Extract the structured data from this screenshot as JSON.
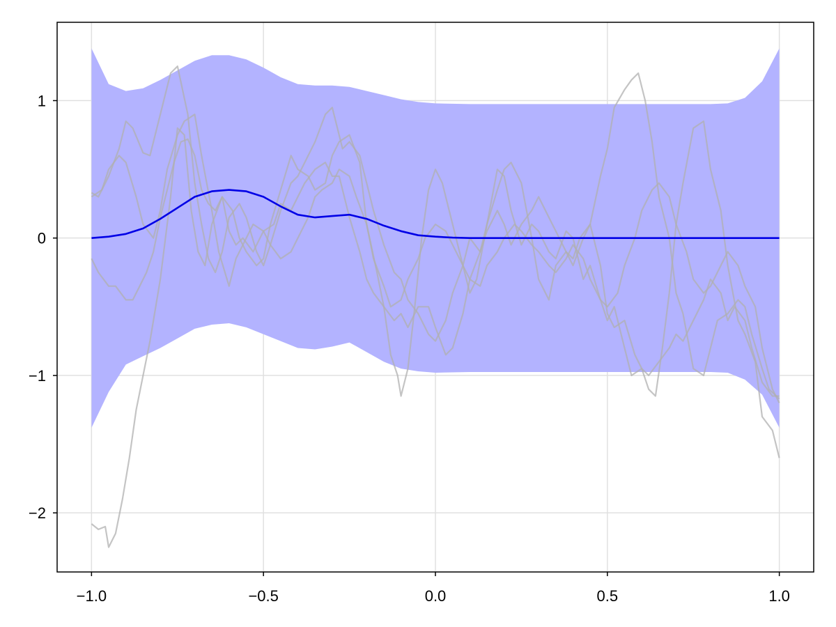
{
  "chart_data": {
    "type": "line",
    "title": "",
    "xlabel": "",
    "ylabel": "",
    "xlim": [
      -1.1,
      1.1
    ],
    "ylim": [
      -2.43,
      1.57
    ],
    "grid": true,
    "legend": "none",
    "x_ticks": [
      -1.0,
      -0.5,
      0.0,
      0.5,
      1.0
    ],
    "x_tick_labels": [
      "−1.0",
      "−0.5",
      "0.0",
      "0.5",
      "1.0"
    ],
    "y_ticks": [
      -2,
      -1,
      0,
      1
    ],
    "y_tick_labels": [
      "−2",
      "−1",
      "0",
      "1"
    ],
    "band": {
      "color": "#b3b3ff",
      "x": [
        -1.0,
        -0.95,
        -0.9,
        -0.85,
        -0.8,
        -0.75,
        -0.7,
        -0.65,
        -0.6,
        -0.55,
        -0.5,
        -0.45,
        -0.4,
        -0.35,
        -0.3,
        -0.25,
        -0.2,
        -0.15,
        -0.1,
        -0.05,
        0.0,
        0.1,
        0.2,
        0.3,
        0.4,
        0.5,
        0.6,
        0.7,
        0.8,
        0.85,
        0.9,
        0.95,
        1.0
      ],
      "upper": [
        1.38,
        1.12,
        1.07,
        1.09,
        1.15,
        1.22,
        1.29,
        1.33,
        1.33,
        1.3,
        1.24,
        1.17,
        1.12,
        1.11,
        1.11,
        1.1,
        1.07,
        1.04,
        1.01,
        0.99,
        0.98,
        0.975,
        0.975,
        0.975,
        0.975,
        0.975,
        0.975,
        0.975,
        0.975,
        0.98,
        1.02,
        1.14,
        1.38
      ],
      "lower": [
        -1.38,
        -1.12,
        -0.92,
        -0.86,
        -0.8,
        -0.73,
        -0.66,
        -0.63,
        -0.62,
        -0.65,
        -0.7,
        -0.75,
        -0.8,
        -0.81,
        -0.79,
        -0.76,
        -0.83,
        -0.9,
        -0.95,
        -0.97,
        -0.98,
        -0.975,
        -0.975,
        -0.975,
        -0.975,
        -0.975,
        -0.975,
        -0.975,
        -0.975,
        -0.98,
        -1.03,
        -1.14,
        -1.38
      ]
    },
    "mean": {
      "color": "#0000e6",
      "x": [
        -1.0,
        -0.95,
        -0.9,
        -0.85,
        -0.8,
        -0.75,
        -0.7,
        -0.65,
        -0.6,
        -0.55,
        -0.5,
        -0.45,
        -0.4,
        -0.35,
        -0.3,
        -0.25,
        -0.2,
        -0.15,
        -0.1,
        -0.05,
        0.0,
        0.05,
        0.1,
        0.2,
        0.3,
        0.4,
        0.5,
        0.6,
        0.7,
        0.8,
        0.9,
        1.0
      ],
      "y": [
        0.0,
        0.01,
        0.03,
        0.07,
        0.14,
        0.22,
        0.3,
        0.34,
        0.35,
        0.34,
        0.3,
        0.23,
        0.17,
        0.15,
        0.16,
        0.17,
        0.14,
        0.09,
        0.05,
        0.02,
        0.01,
        0.003,
        0.0,
        0.0,
        0.0,
        0.0,
        0.0,
        0.0,
        0.0,
        0.0,
        0.0,
        0.0
      ]
    },
    "samples": [
      {
        "color": "#b0b0b0",
        "x": [
          -1.0,
          -0.98,
          -0.96,
          -0.95,
          -0.93,
          -0.91,
          -0.89,
          -0.87,
          -0.85,
          -0.83,
          -0.8,
          -0.77,
          -0.75,
          -0.73,
          -0.71,
          -0.69,
          -0.67,
          -0.65,
          -0.62,
          -0.59,
          -0.57,
          -0.55,
          -0.52,
          -0.5,
          -0.48,
          -0.45,
          -0.42,
          -0.4,
          -0.37,
          -0.35,
          -0.32,
          -0.3,
          -0.28,
          -0.25,
          -0.22,
          -0.2,
          -0.17,
          -0.15,
          -0.13,
          -0.11,
          -0.1,
          -0.08,
          -0.06,
          -0.04,
          -0.02,
          0.0,
          0.02,
          0.05,
          0.08,
          0.1,
          0.12,
          0.15,
          0.18,
          0.2,
          0.22,
          0.25,
          0.28,
          0.3,
          0.33,
          0.35,
          0.38,
          0.4,
          0.43,
          0.45,
          0.48,
          0.5,
          0.52,
          0.55,
          0.57,
          0.6,
          0.62,
          0.64,
          0.66,
          0.68,
          0.7,
          0.72,
          0.75,
          0.78,
          0.8,
          0.83,
          0.85,
          0.88,
          0.9,
          0.93,
          0.95,
          0.98,
          1.0
        ],
        "y": [
          -2.08,
          -2.12,
          -2.1,
          -2.25,
          -2.15,
          -1.9,
          -1.6,
          -1.25,
          -1.0,
          -0.75,
          -0.3,
          0.3,
          0.8,
          0.75,
          0.2,
          -0.1,
          -0.2,
          0.1,
          0.3,
          0.2,
          0.0,
          -0.1,
          -0.2,
          -0.15,
          0.1,
          0.35,
          0.6,
          0.5,
          0.45,
          0.35,
          0.4,
          0.6,
          0.7,
          0.75,
          0.55,
          0.1,
          -0.25,
          -0.5,
          -0.85,
          -1.0,
          -1.15,
          -0.95,
          -0.5,
          0.0,
          0.35,
          0.5,
          0.4,
          0.1,
          -0.2,
          -0.4,
          -0.3,
          0.1,
          0.5,
          0.45,
          0.2,
          -0.05,
          0.1,
          0.05,
          -0.1,
          -0.15,
          0.05,
          0.0,
          -0.3,
          -0.2,
          -0.45,
          -0.6,
          -0.5,
          -0.8,
          -1.0,
          -0.95,
          -1.1,
          -1.15,
          -0.8,
          -0.4,
          0.1,
          0.4,
          0.8,
          0.85,
          0.5,
          0.2,
          -0.2,
          -0.6,
          -0.7,
          -0.9,
          -1.3,
          -1.4,
          -1.6
        ]
      },
      {
        "color": "#b0b0b0",
        "x": [
          -1.0,
          -0.98,
          -0.95,
          -0.92,
          -0.9,
          -0.88,
          -0.85,
          -0.83,
          -0.8,
          -0.77,
          -0.75,
          -0.72,
          -0.7,
          -0.68,
          -0.66,
          -0.64,
          -0.62,
          -0.6,
          -0.57,
          -0.55,
          -0.52,
          -0.5,
          -0.48,
          -0.45,
          -0.42,
          -0.4,
          -0.38,
          -0.35,
          -0.32,
          -0.3,
          -0.27,
          -0.25,
          -0.22,
          -0.2,
          -0.18,
          -0.15,
          -0.12,
          -0.1,
          -0.08,
          -0.05,
          -0.02,
          0.0,
          0.03,
          0.05,
          0.08,
          0.1,
          0.13,
          0.15,
          0.18,
          0.2,
          0.22,
          0.25,
          0.28,
          0.3,
          0.33,
          0.35,
          0.38,
          0.4,
          0.43,
          0.45,
          0.48,
          0.5,
          0.52,
          0.55,
          0.58,
          0.6,
          0.62,
          0.65,
          0.68,
          0.7,
          0.72,
          0.75,
          0.78,
          0.8,
          0.83,
          0.85,
          0.87,
          0.9,
          0.92,
          0.95,
          0.98,
          1.0
        ],
        "y": [
          0.33,
          0.3,
          0.45,
          0.65,
          0.85,
          0.8,
          0.62,
          0.6,
          0.9,
          1.2,
          1.25,
          0.9,
          0.4,
          0.1,
          -0.15,
          -0.25,
          -0.1,
          0.15,
          0.25,
          0.15,
          -0.1,
          -0.2,
          -0.05,
          0.2,
          0.4,
          0.45,
          0.55,
          0.7,
          0.9,
          0.95,
          0.65,
          0.7,
          0.6,
          0.4,
          0.2,
          -0.05,
          -0.25,
          -0.3,
          -0.45,
          -0.55,
          -0.7,
          -0.75,
          -0.6,
          -0.4,
          -0.2,
          0.0,
          -0.1,
          0.05,
          0.2,
          0.1,
          -0.05,
          0.1,
          0.2,
          0.3,
          0.15,
          0.05,
          -0.1,
          -0.2,
          0.0,
          0.1,
          -0.2,
          -0.55,
          -0.65,
          -0.6,
          -0.85,
          -0.95,
          -1.0,
          -0.9,
          -0.8,
          -0.7,
          -0.75,
          -0.6,
          -0.45,
          -0.3,
          -0.4,
          -0.6,
          -0.5,
          -0.6,
          -0.8,
          -1.05,
          -1.15,
          -1.15
        ]
      },
      {
        "color": "#b0b0b0",
        "x": [
          -1.0,
          -0.98,
          -0.95,
          -0.93,
          -0.9,
          -0.88,
          -0.86,
          -0.84,
          -0.82,
          -0.8,
          -0.78,
          -0.76,
          -0.74,
          -0.72,
          -0.7,
          -0.68,
          -0.66,
          -0.64,
          -0.62,
          -0.6,
          -0.58,
          -0.56,
          -0.53,
          -0.5,
          -0.47,
          -0.45,
          -0.42,
          -0.4,
          -0.38,
          -0.35,
          -0.32,
          -0.3,
          -0.28,
          -0.25,
          -0.22,
          -0.2,
          -0.18,
          -0.15,
          -0.12,
          -0.1,
          -0.08,
          -0.05,
          -0.02,
          0.0,
          0.03,
          0.05,
          0.08,
          0.1,
          0.13,
          0.15,
          0.18,
          0.2,
          0.22,
          0.25,
          0.28,
          0.3,
          0.33,
          0.35,
          0.38,
          0.4,
          0.42,
          0.45,
          0.48,
          0.5,
          0.52,
          0.55,
          0.57,
          0.59,
          0.61,
          0.63,
          0.65,
          0.68,
          0.7,
          0.72,
          0.75,
          0.78,
          0.8,
          0.82,
          0.85,
          0.88,
          0.9,
          0.92,
          0.95,
          0.97,
          1.0
        ],
        "y": [
          -0.15,
          -0.25,
          -0.35,
          -0.35,
          -0.45,
          -0.45,
          -0.35,
          -0.25,
          -0.1,
          0.15,
          0.35,
          0.55,
          0.7,
          0.72,
          0.6,
          0.35,
          0.25,
          0.2,
          0.3,
          0.05,
          -0.05,
          0.0,
          -0.1,
          0.05,
          0.1,
          0.25,
          0.2,
          0.3,
          0.4,
          0.5,
          0.55,
          0.45,
          0.45,
          0.15,
          -0.1,
          -0.3,
          -0.4,
          -0.5,
          -0.6,
          -0.55,
          -0.65,
          -0.5,
          -0.5,
          -0.65,
          -0.85,
          -0.8,
          -0.55,
          -0.3,
          -0.1,
          0.1,
          0.35,
          0.5,
          0.55,
          0.4,
          0.0,
          -0.3,
          -0.45,
          -0.2,
          -0.1,
          -0.15,
          0.0,
          0.1,
          0.45,
          0.65,
          0.95,
          1.08,
          1.15,
          1.2,
          1.0,
          0.7,
          0.3,
          0.0,
          -0.4,
          -0.55,
          -0.95,
          -1.0,
          -0.8,
          -0.6,
          -0.55,
          -0.45,
          -0.5,
          -0.7,
          -0.95,
          -1.1,
          -1.17
        ]
      },
      {
        "color": "#b0b0b0",
        "x": [
          -1.0,
          -0.97,
          -0.95,
          -0.92,
          -0.9,
          -0.87,
          -0.85,
          -0.82,
          -0.8,
          -0.78,
          -0.75,
          -0.73,
          -0.7,
          -0.68,
          -0.65,
          -0.63,
          -0.6,
          -0.58,
          -0.55,
          -0.53,
          -0.5,
          -0.48,
          -0.45,
          -0.42,
          -0.4,
          -0.37,
          -0.35,
          -0.33,
          -0.3,
          -0.28,
          -0.25,
          -0.23,
          -0.2,
          -0.18,
          -0.15,
          -0.13,
          -0.1,
          -0.08,
          -0.05,
          -0.03,
          0.0,
          0.03,
          0.05,
          0.08,
          0.1,
          0.13,
          0.15,
          0.18,
          0.2,
          0.23,
          0.25,
          0.28,
          0.3,
          0.33,
          0.35,
          0.38,
          0.4,
          0.43,
          0.45,
          0.48,
          0.5,
          0.53,
          0.55,
          0.58,
          0.6,
          0.63,
          0.65,
          0.68,
          0.7,
          0.73,
          0.75,
          0.78,
          0.8,
          0.83,
          0.85,
          0.88,
          0.9,
          0.93,
          0.95,
          0.98,
          1.0
        ],
        "y": [
          0.3,
          0.35,
          0.5,
          0.6,
          0.55,
          0.3,
          0.1,
          0.0,
          0.2,
          0.5,
          0.75,
          0.85,
          0.9,
          0.6,
          0.2,
          -0.1,
          -0.35,
          -0.15,
          0.0,
          0.1,
          0.05,
          -0.05,
          -0.15,
          -0.1,
          0.0,
          0.15,
          0.3,
          0.35,
          0.4,
          0.5,
          0.45,
          0.3,
          0.1,
          -0.15,
          -0.35,
          -0.5,
          -0.45,
          -0.3,
          -0.15,
          0.0,
          0.1,
          0.05,
          -0.05,
          -0.2,
          -0.3,
          -0.35,
          -0.2,
          -0.1,
          0.0,
          0.1,
          0.05,
          -0.05,
          -0.1,
          -0.2,
          -0.25,
          -0.15,
          -0.05,
          -0.15,
          -0.3,
          -0.45,
          -0.5,
          -0.4,
          -0.2,
          0.0,
          0.2,
          0.35,
          0.4,
          0.3,
          0.1,
          -0.1,
          -0.3,
          -0.4,
          -0.35,
          -0.2,
          -0.1,
          -0.2,
          -0.35,
          -0.5,
          -0.8,
          -1.1,
          -1.2
        ]
      }
    ]
  }
}
